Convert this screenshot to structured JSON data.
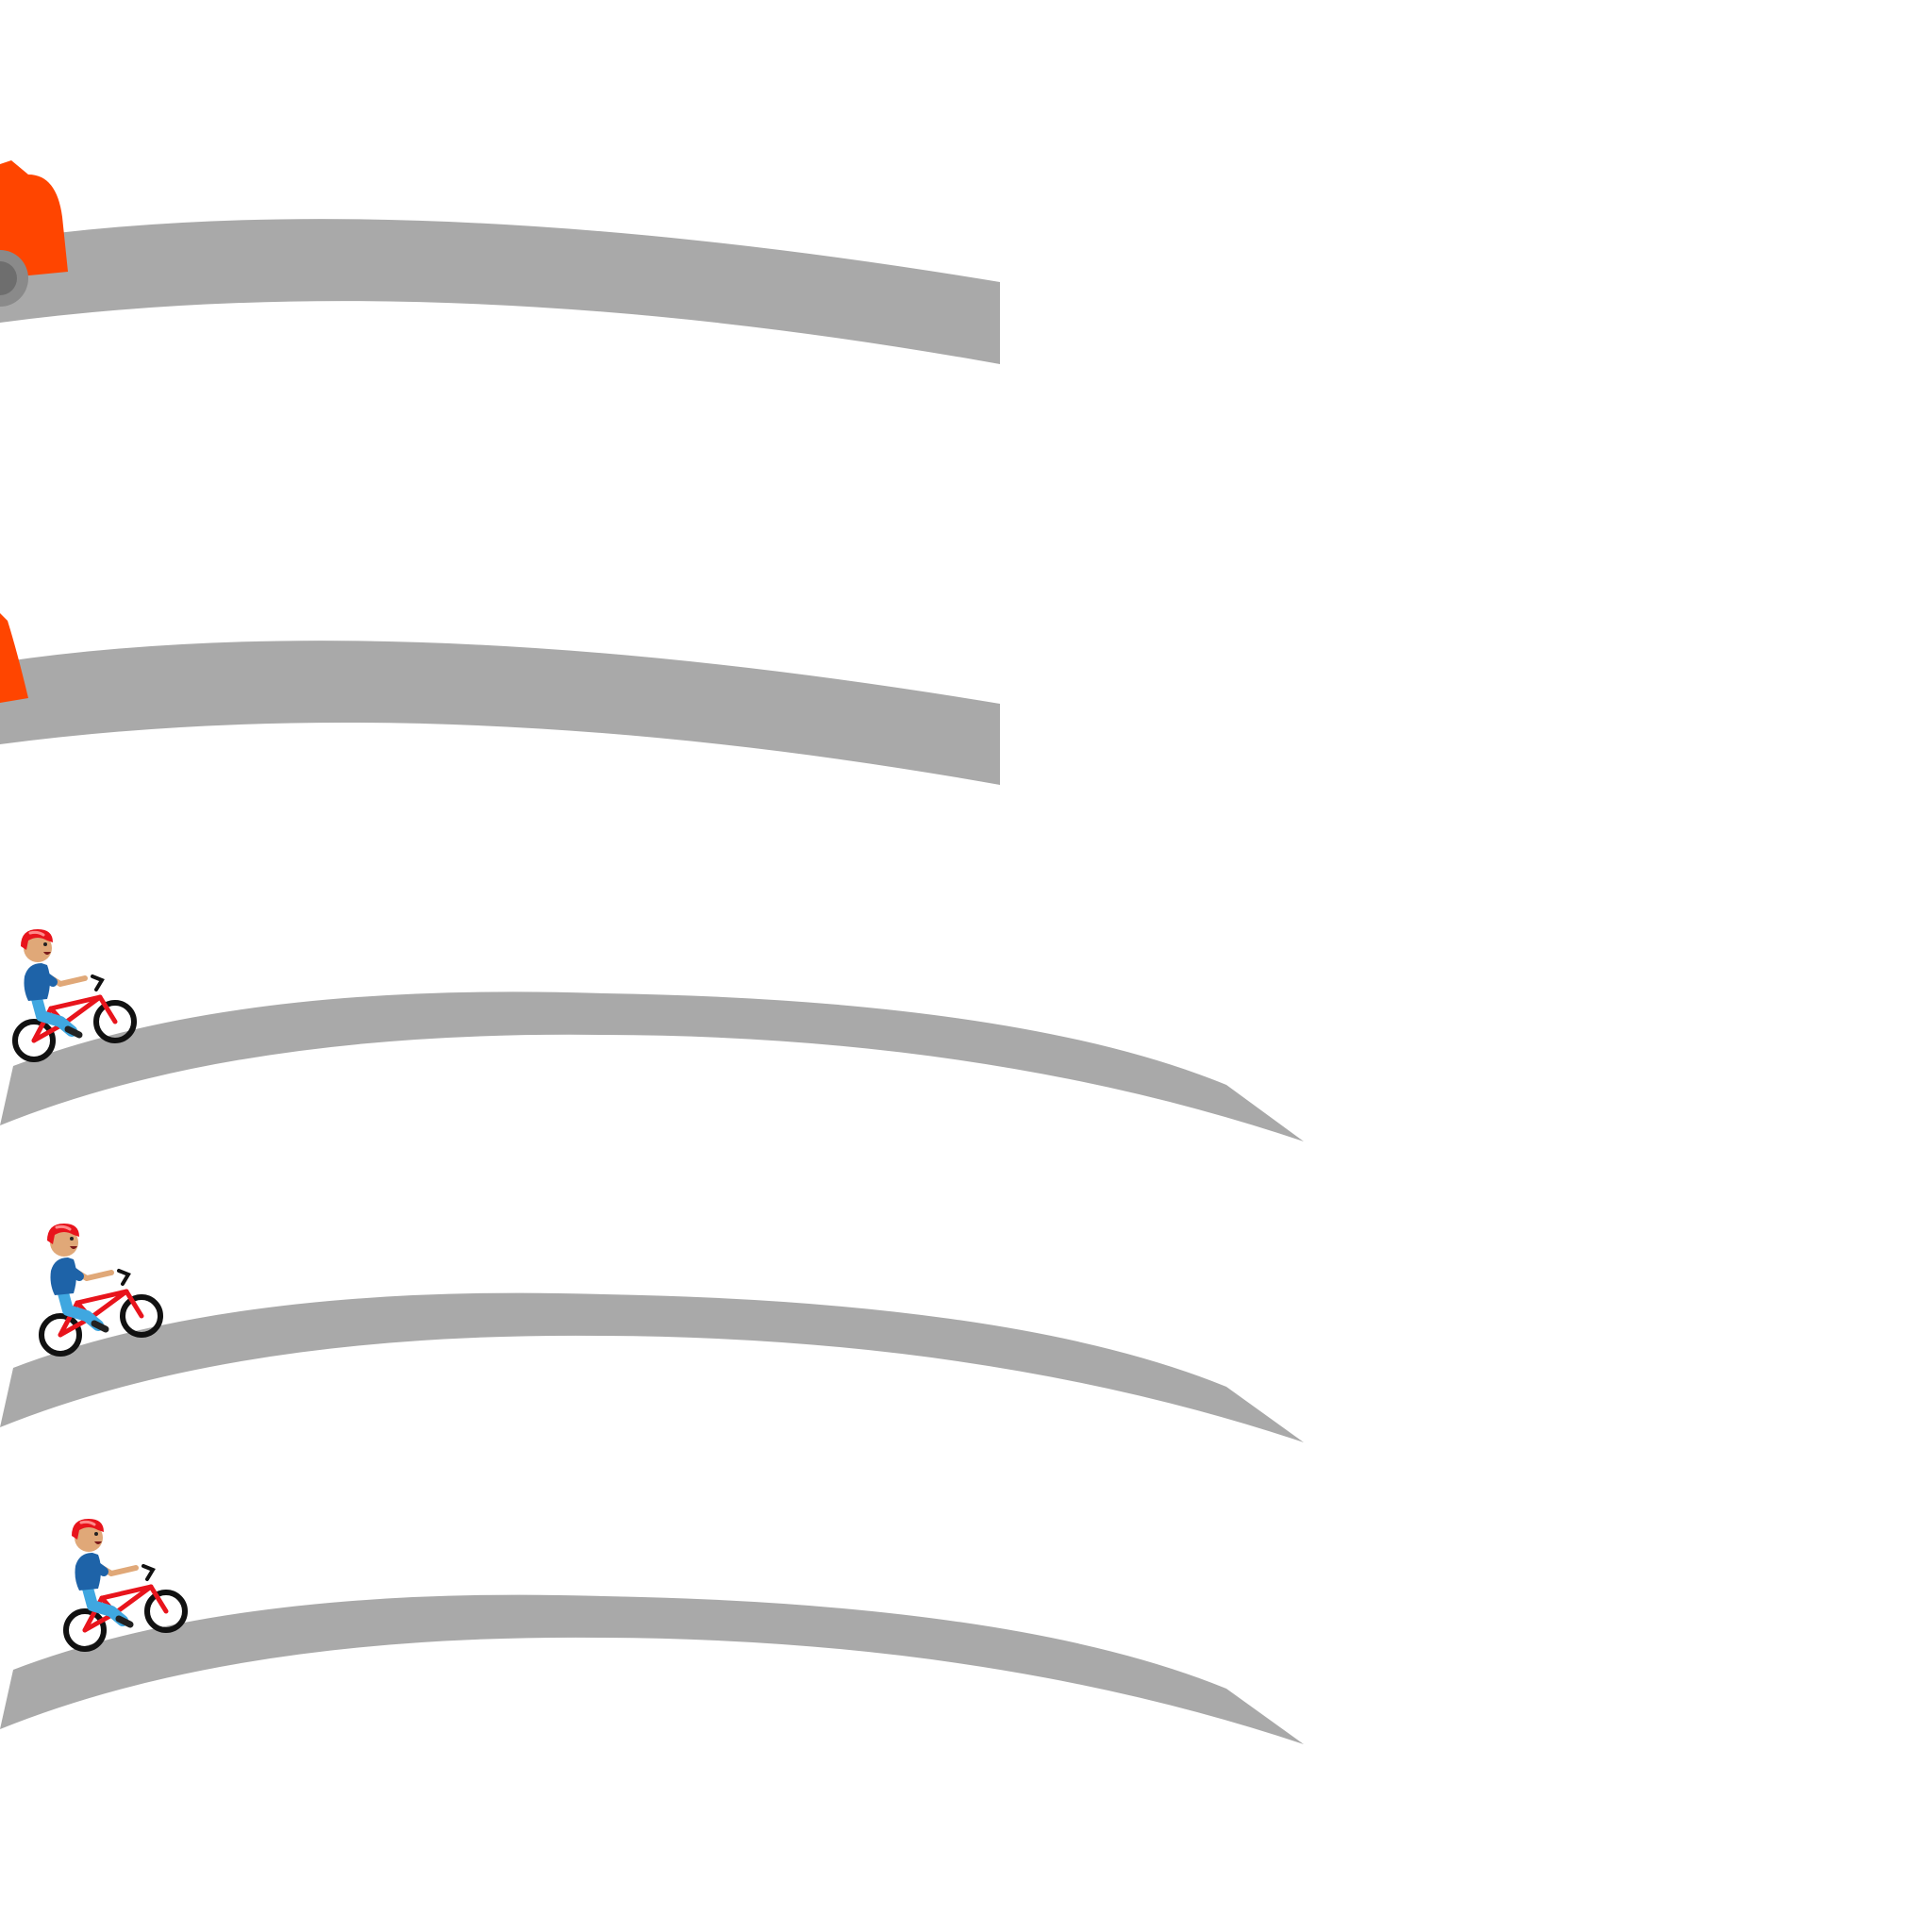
{
  "scene": {
    "background": "#ffffff",
    "road_color": "#a9a9a9",
    "car_color": "#ff4500",
    "wheel_color": "#8a8a8a",
    "helmet_color": "#e8141c",
    "shirt_color": "#1e63a8",
    "pants_color": "#3fa7e0",
    "skin_color": "#e0a878",
    "bike_frame_color": "#e8141c",
    "tire_color": "#111111"
  },
  "lanes": [
    {
      "kind": "car-lane",
      "vehicle": "car-icon"
    },
    {
      "kind": "car-lane",
      "vehicle": "car-icon"
    },
    {
      "kind": "bike-lane",
      "vehicle": "cyclist-icon"
    },
    {
      "kind": "bike-lane",
      "vehicle": "cyclist-icon"
    },
    {
      "kind": "bike-lane",
      "vehicle": "cyclist-icon"
    }
  ]
}
